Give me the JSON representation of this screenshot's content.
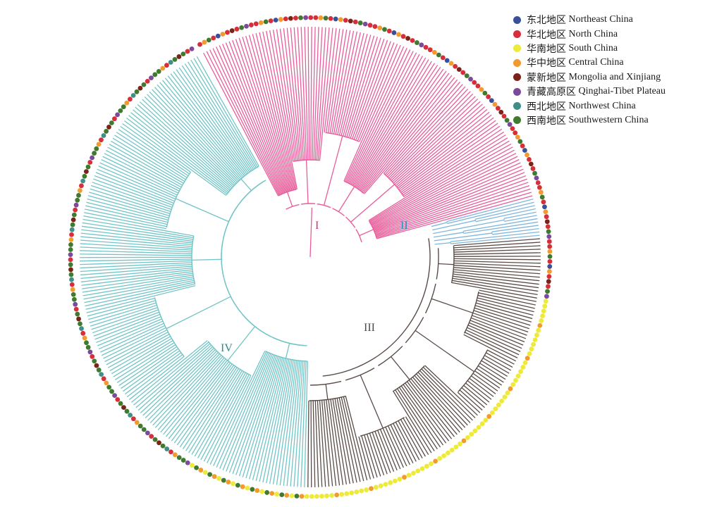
{
  "legend": [
    {
      "zh": "东北地区",
      "en": "Northeast China",
      "color": "#3a4f9a"
    },
    {
      "zh": "华北地区",
      "en": "North China",
      "color": "#d62f3a"
    },
    {
      "zh": "华南地区",
      "en": "South China",
      "color": "#eeea3a"
    },
    {
      "zh": "华中地区",
      "en": "Central China",
      "color": "#f39a2e"
    },
    {
      "zh": "蒙新地区",
      "en": "Mongolia and  Xinjiang",
      "color": "#7a2318"
    },
    {
      "zh": "青藏高原区",
      "en": "Qinghai-Tibet Plateau",
      "color": "#7b4a9a"
    },
    {
      "zh": "西北地区",
      "en": "Northwest China",
      "color": "#3e8e8a"
    },
    {
      "zh": "西南地区",
      "en": "Southwestern China",
      "color": "#3f7a2f"
    }
  ],
  "clades": [
    {
      "label": "I",
      "color": "#e85d9b",
      "label_color": "#e0287f"
    },
    {
      "label": "II",
      "color": "#7fb6dc",
      "label_color": "#2a8cc2"
    },
    {
      "label": "III",
      "color": "#5a4c48",
      "label_color": "#4a4a4a"
    },
    {
      "label": "IV",
      "color": "#72c4c6",
      "label_color": "#2e8a8a"
    }
  ]
}
